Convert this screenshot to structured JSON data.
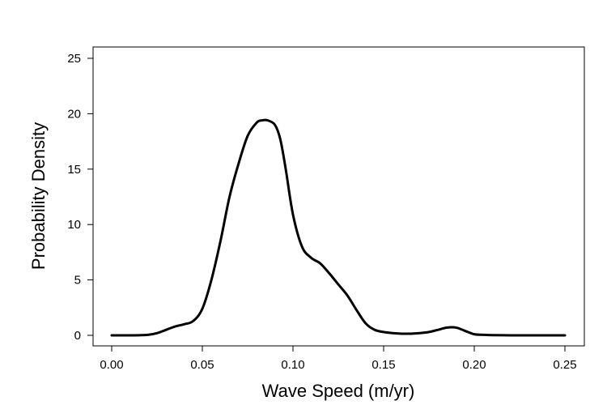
{
  "chart_data": {
    "type": "line",
    "title": "",
    "xlabel": "Wave Speed (m/yr)",
    "ylabel": "Probability Density",
    "xlim": [
      0.0,
      0.25
    ],
    "ylim": [
      0,
      25
    ],
    "x_ticks": [
      "0.00",
      "0.05",
      "0.10",
      "0.15",
      "0.20",
      "0.25"
    ],
    "y_ticks": [
      "0",
      "5",
      "10",
      "15",
      "20",
      "25"
    ],
    "grid": false,
    "legend": "none",
    "line_color": "#000000",
    "series": [
      {
        "x": [
          0.0,
          0.01,
          0.02,
          0.025,
          0.03,
          0.035,
          0.04,
          0.045,
          0.05,
          0.055,
          0.06,
          0.065,
          0.07,
          0.075,
          0.08,
          0.083,
          0.086,
          0.09,
          0.093,
          0.096,
          0.1,
          0.105,
          0.11,
          0.115,
          0.12,
          0.125,
          0.13,
          0.135,
          0.14,
          0.145,
          0.15,
          0.155,
          0.16,
          0.165,
          0.17,
          0.175,
          0.18,
          0.185,
          0.19,
          0.195,
          0.2,
          0.205,
          0.21,
          0.22,
          0.23,
          0.24,
          0.25
        ],
        "y": [
          0,
          0,
          0.05,
          0.2,
          0.5,
          0.8,
          1.0,
          1.3,
          2.4,
          5.0,
          8.5,
          12.5,
          15.5,
          18.0,
          19.2,
          19.4,
          19.4,
          19.0,
          17.7,
          15.0,
          10.9,
          8.0,
          7.0,
          6.5,
          5.6,
          4.6,
          3.6,
          2.3,
          1.1,
          0.5,
          0.3,
          0.2,
          0.15,
          0.15,
          0.2,
          0.3,
          0.5,
          0.7,
          0.7,
          0.4,
          0.1,
          0.05,
          0.02,
          0,
          0,
          0,
          0
        ]
      }
    ]
  }
}
